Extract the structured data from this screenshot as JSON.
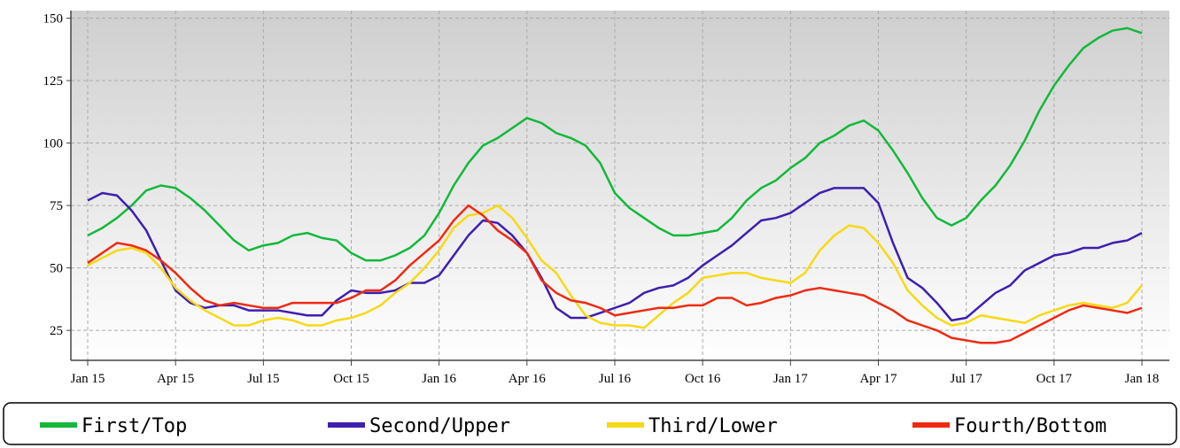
{
  "chart_data": {
    "type": "line",
    "categories": [
      "Jan 15",
      null,
      null,
      null,
      null,
      null,
      "Apr 15",
      null,
      null,
      null,
      null,
      null,
      "Jul 15",
      null,
      null,
      null,
      null,
      null,
      "Oct 15",
      null,
      null,
      null,
      null,
      null,
      "Jan 16",
      null,
      null,
      null,
      null,
      null,
      "Apr 16",
      null,
      null,
      null,
      null,
      null,
      "Jul 16",
      null,
      null,
      null,
      null,
      null,
      "Oct 16",
      null,
      null,
      null,
      null,
      null,
      "Jan 17",
      null,
      null,
      null,
      null,
      null,
      "Apr 17",
      null,
      null,
      null,
      null,
      null,
      "Jul 17",
      null,
      null,
      null,
      null,
      null,
      "Oct 17",
      null,
      null,
      null,
      null,
      null,
      "Jan 18"
    ],
    "series": [
      {
        "name": "First/Top",
        "color": "#13b83a",
        "values": [
          63,
          66,
          70,
          75,
          81,
          83,
          82,
          78,
          73,
          67,
          61,
          57,
          59,
          60,
          63,
          64,
          62,
          61,
          56,
          53,
          53,
          55,
          58,
          63,
          72,
          83,
          92,
          99,
          102,
          106,
          110,
          108,
          104,
          102,
          99,
          92,
          80,
          74,
          70,
          66,
          63,
          63,
          64,
          65,
          70,
          77,
          82,
          85,
          90,
          94,
          100,
          103,
          107,
          109,
          105,
          97,
          88,
          78,
          70,
          67,
          70,
          77,
          83,
          91,
          101,
          113,
          123,
          131,
          138,
          142,
          145,
          146,
          144
        ]
      },
      {
        "name": "Second/Upper",
        "color": "#3e1fae",
        "values": [
          77,
          80,
          79,
          73,
          65,
          53,
          41,
          36,
          34,
          35,
          35,
          33,
          33,
          33,
          32,
          31,
          31,
          37,
          41,
          40,
          40,
          41,
          44,
          44,
          47,
          55,
          63,
          69,
          68,
          63,
          56,
          46,
          34,
          30,
          30,
          32,
          34,
          36,
          40,
          42,
          43,
          46,
          51,
          55,
          59,
          64,
          69,
          70,
          72,
          76,
          80,
          82,
          82,
          82,
          76,
          60,
          46,
          42,
          36,
          29,
          30,
          35,
          40,
          43,
          49,
          52,
          55,
          56,
          58,
          58,
          60,
          61,
          64
        ]
      },
      {
        "name": "Third/Lower",
        "color": "#f7d915",
        "values": [
          51,
          54,
          57,
          58,
          56,
          50,
          42,
          37,
          33,
          30,
          27,
          27,
          29,
          30,
          29,
          27,
          27,
          29,
          30,
          32,
          35,
          40,
          44,
          50,
          57,
          66,
          71,
          72,
          75,
          70,
          62,
          53,
          48,
          39,
          31,
          28,
          27,
          27,
          26,
          31,
          36,
          40,
          46,
          47,
          48,
          48,
          46,
          45,
          44,
          48,
          57,
          63,
          67,
          66,
          60,
          52,
          41,
          35,
          30,
          27,
          28,
          31,
          30,
          29,
          28,
          31,
          33,
          35,
          36,
          35,
          34,
          36,
          43
        ]
      },
      {
        "name": "Fourth/Bottom",
        "color": "#f02a12",
        "values": [
          52,
          56,
          60,
          59,
          57,
          53,
          48,
          42,
          37,
          35,
          36,
          35,
          34,
          34,
          36,
          36,
          36,
          36,
          38,
          41,
          41,
          45,
          51,
          56,
          61,
          69,
          75,
          71,
          65,
          61,
          56,
          45,
          40,
          37,
          36,
          34,
          31,
          32,
          33,
          34,
          34,
          35,
          35,
          38,
          38,
          35,
          36,
          38,
          39,
          41,
          42,
          41,
          40,
          39,
          36,
          33,
          29,
          27,
          25,
          22,
          21,
          20,
          20,
          21,
          24,
          27,
          30,
          33,
          35,
          34,
          33,
          32,
          34
        ]
      }
    ],
    "ylim": [
      13,
      153
    ],
    "yticks": [
      25,
      50,
      75,
      100,
      125,
      150
    ],
    "grid": true,
    "legend": "bottom"
  }
}
